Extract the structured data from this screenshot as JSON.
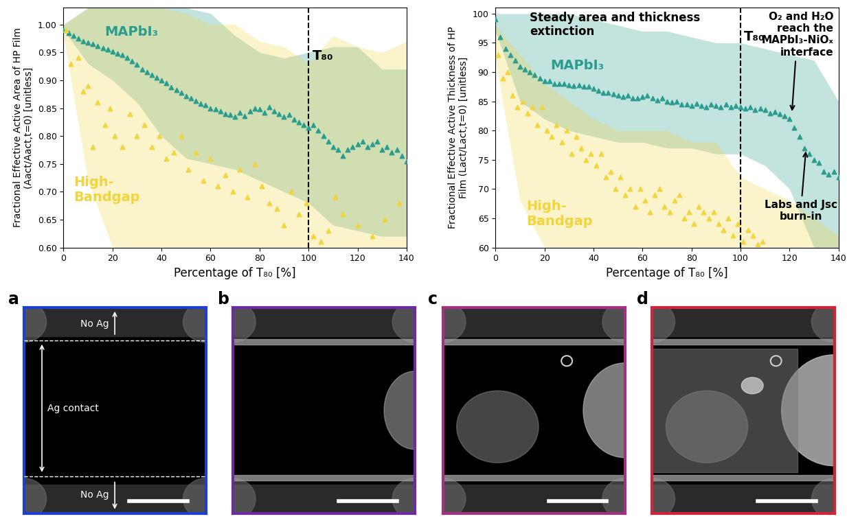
{
  "chart_data": [
    {
      "type": "scatter",
      "x_label": "Percentage of T₈₀ [%]",
      "y_label": "Fractional Effective Active Area of HP Film\n(Aact/Aact,t=0) [unitless]",
      "xlim": [
        0,
        140
      ],
      "xticks": [
        0,
        20,
        40,
        60,
        80,
        100,
        120,
        140
      ],
      "ylim": [
        0.6,
        1.03
      ],
      "yticks": [
        {
          "value": 0.6,
          "label": "0.60"
        },
        0.65,
        {
          "value": 0.7,
          "label": "0.70"
        },
        0.75,
        {
          "value": 0.8,
          "label": "0.80"
        },
        0.85,
        {
          "value": 0.9,
          "label": "0.90"
        },
        0.95,
        {
          "value": 1.0,
          "label": "1.00"
        }
      ],
      "vline": {
        "x": 100,
        "label": "T₈₀"
      },
      "annotations": [],
      "series": [
        {
          "name": "MAPbI₃",
          "color": "#2a9d8f",
          "marker": "triangle",
          "x": [
            0,
            2,
            4,
            6,
            8,
            10,
            12,
            14,
            16,
            18,
            20,
            22,
            24,
            26,
            28,
            30,
            32,
            34,
            36,
            38,
            40,
            42,
            44,
            46,
            48,
            50,
            52,
            54,
            56,
            58,
            60,
            62,
            64,
            66,
            68,
            70,
            72,
            74,
            76,
            78,
            80,
            82,
            84,
            86,
            88,
            90,
            92,
            94,
            96,
            98,
            100,
            102,
            104,
            106,
            108,
            110,
            112,
            114,
            116,
            118,
            120,
            122,
            124,
            126,
            128,
            130,
            132,
            134,
            136,
            138,
            140
          ],
          "values": [
            0.99,
            0.985,
            0.98,
            0.975,
            0.97,
            0.968,
            0.965,
            0.962,
            0.958,
            0.955,
            0.952,
            0.948,
            0.945,
            0.94,
            0.935,
            0.928,
            0.92,
            0.915,
            0.91,
            0.905,
            0.9,
            0.895,
            0.888,
            0.883,
            0.878,
            0.872,
            0.868,
            0.863,
            0.858,
            0.855,
            0.85,
            0.848,
            0.845,
            0.84,
            0.838,
            0.835,
            0.842,
            0.836,
            0.845,
            0.85,
            0.848,
            0.842,
            0.852,
            0.845,
            0.84,
            0.835,
            0.838,
            0.83,
            0.825,
            0.82,
            0.815,
            0.82,
            0.81,
            0.8,
            0.79,
            0.78,
            0.775,
            0.765,
            0.775,
            0.78,
            0.785,
            0.79,
            0.78,
            0.785,
            0.79,
            0.775,
            0.78,
            0.77,
            0.775,
            0.765,
            0.755
          ],
          "band_x": [
            0,
            10,
            20,
            30,
            40,
            50,
            60,
            70,
            80,
            90,
            100,
            110,
            120,
            130,
            140
          ],
          "band_lower": [
            0.99,
            0.93,
            0.9,
            0.86,
            0.8,
            0.76,
            0.75,
            0.74,
            0.72,
            0.7,
            0.68,
            0.64,
            0.63,
            0.62,
            0.62
          ],
          "band_upper": [
            1.0,
            1.03,
            1.03,
            1.03,
            1.03,
            1.03,
            1.02,
            0.98,
            0.95,
            0.94,
            0.95,
            0.96,
            0.96,
            0.92,
            0.92
          ]
        },
        {
          "name": "High-\nBandgap",
          "color": "#f2d43d",
          "marker": "triangle",
          "x": [
            1,
            3,
            6,
            8,
            10,
            12,
            14,
            17,
            19,
            21,
            24,
            27,
            30,
            33,
            36,
            39,
            42,
            45,
            48,
            51,
            54,
            57,
            60,
            63,
            66,
            69,
            72,
            75,
            78,
            81,
            84,
            87,
            90,
            93,
            96,
            99,
            102,
            105,
            108,
            111,
            114,
            120,
            126,
            131,
            137
          ],
          "values": [
            0.99,
            0.93,
            0.94,
            0.88,
            0.89,
            0.78,
            0.86,
            0.82,
            0.85,
            0.8,
            0.78,
            0.84,
            0.8,
            0.82,
            0.78,
            0.8,
            0.76,
            0.77,
            0.8,
            0.74,
            0.77,
            0.72,
            0.76,
            0.71,
            0.73,
            0.7,
            0.74,
            0.69,
            0.75,
            0.71,
            0.68,
            0.67,
            0.64,
            0.7,
            0.66,
            0.68,
            0.62,
            0.61,
            0.63,
            0.69,
            0.66,
            0.64,
            0.62,
            0.65,
            0.68
          ],
          "band_x": [
            0,
            10,
            20,
            30,
            40,
            50,
            60,
            70,
            80,
            90,
            100,
            110,
            120,
            130,
            140
          ],
          "band_lower": [
            0.98,
            0.72,
            0.6,
            0.6,
            0.6,
            0.6,
            0.6,
            0.6,
            0.6,
            0.6,
            0.6,
            0.6,
            0.6,
            0.6,
            0.6
          ],
          "band_upper": [
            1.0,
            1.03,
            1.03,
            1.03,
            1.03,
            1.02,
            1.0,
            1.0,
            0.97,
            0.96,
            0.93,
            0.98,
            0.96,
            0.95,
            0.97
          ]
        }
      ]
    },
    {
      "type": "scatter",
      "x_label": "Percentage of T₈₀ [%]",
      "y_label": "Fractional Effective Active Thickness of HP\nFilm (Lact/Lact,t=0) [unitless]",
      "xlim": [
        0,
        140
      ],
      "xticks": [
        0,
        20,
        40,
        60,
        80,
        100,
        120,
        140
      ],
      "ylim": [
        60,
        101
      ],
      "yticks": [
        60,
        65,
        70,
        75,
        80,
        85,
        90,
        95,
        100
      ],
      "vline": {
        "x": 100,
        "label": "T₈₀"
      },
      "annotations": [
        "Steady area and thickness\nextinction",
        "O₂ and H₂O\nreach the\nMAPbI₃-NiOₓ\ninterface",
        "Labs and Jsc\nburn-in"
      ],
      "series": [
        {
          "name": "MAPbI₃",
          "color": "#2a9d8f",
          "marker": "triangle",
          "x": [
            0,
            2,
            4,
            6,
            8,
            10,
            12,
            14,
            16,
            18,
            20,
            22,
            24,
            26,
            28,
            30,
            32,
            34,
            36,
            38,
            40,
            42,
            44,
            46,
            48,
            50,
            52,
            54,
            56,
            58,
            60,
            62,
            64,
            66,
            68,
            70,
            72,
            74,
            76,
            78,
            80,
            82,
            84,
            86,
            88,
            90,
            92,
            94,
            96,
            98,
            100,
            102,
            104,
            106,
            108,
            110,
            112,
            114,
            116,
            118,
            120,
            122,
            124,
            126,
            128,
            130,
            132,
            134,
            136,
            138,
            140
          ],
          "values": [
            99,
            96,
            94,
            93,
            92,
            91,
            90.5,
            90,
            89.5,
            89,
            88.5,
            88.5,
            88,
            88,
            88,
            87.8,
            87.6,
            87.8,
            87.5,
            87.5,
            87.2,
            86.8,
            86.5,
            86.5,
            86.2,
            86,
            85.8,
            86,
            85.6,
            85.5,
            85.8,
            86,
            85.5,
            85.2,
            85.5,
            85,
            84.8,
            85,
            84.5,
            84.5,
            84.2,
            84.6,
            84.3,
            84,
            84.5,
            84.2,
            84,
            84.5,
            84,
            84.2,
            84,
            83.8,
            84,
            83.5,
            83.8,
            83.5,
            83,
            83.2,
            82.8,
            82.5,
            82,
            80.5,
            79,
            77,
            76,
            75,
            74.5,
            73,
            72.5,
            73,
            72
          ],
          "band_x": [
            0,
            10,
            20,
            30,
            40,
            50,
            60,
            70,
            80,
            90,
            100,
            110,
            120,
            130,
            140
          ],
          "band_lower": [
            97,
            85,
            82,
            80,
            79,
            78,
            78,
            77,
            77,
            76,
            76,
            74,
            70,
            60,
            60
          ],
          "band_upper": [
            100,
            100,
            100,
            100,
            99,
            98,
            97,
            97,
            96,
            95,
            95,
            94,
            93,
            92,
            85
          ]
        },
        {
          "name": "High-\nBandgap",
          "color": "#f2d43d",
          "marker": "triangle",
          "x": [
            1,
            3,
            5,
            7,
            9,
            11,
            13,
            15,
            17,
            19,
            21,
            23,
            25,
            27,
            29,
            31,
            33,
            35,
            37,
            39,
            41,
            43,
            45,
            47,
            49,
            51,
            53,
            55,
            57,
            59,
            61,
            63,
            65,
            67,
            69,
            71,
            73,
            75,
            77,
            79,
            81,
            83,
            85,
            87,
            89,
            91,
            93,
            95,
            97,
            99,
            101,
            103,
            105,
            107,
            109
          ],
          "values": [
            93,
            89,
            90,
            86,
            84,
            85,
            83,
            84,
            81,
            84,
            80,
            79,
            81,
            78,
            80,
            76,
            79,
            77,
            75,
            76,
            74,
            76,
            72,
            73,
            70,
            72,
            69,
            70,
            67,
            70,
            68,
            66,
            69,
            70,
            67,
            66,
            68,
            69,
            65,
            66,
            64,
            67,
            66,
            65,
            66,
            64,
            63,
            65,
            62,
            64,
            61,
            63,
            62,
            60.5,
            61
          ],
          "band_x": [
            0,
            10,
            20,
            30,
            40,
            50,
            60,
            70,
            80,
            90,
            100,
            110,
            120,
            130,
            140
          ],
          "band_lower": [
            92,
            68,
            60,
            60,
            60,
            60,
            60,
            60,
            60,
            60,
            60,
            60,
            60,
            60,
            60
          ],
          "band_upper": [
            98,
            93,
            88,
            85,
            82,
            80,
            80,
            80,
            78,
            78,
            72,
            70,
            68,
            65,
            62
          ]
        }
      ]
    }
  ],
  "panels": {
    "labels": [
      "a",
      "b",
      "c",
      "d"
    ],
    "colors": [
      "#1f3fd0",
      "#6a2ca0",
      "#a0327f",
      "#d0243a"
    ],
    "texts": [
      "No Ag",
      "Ag contact",
      "No Ag"
    ]
  }
}
